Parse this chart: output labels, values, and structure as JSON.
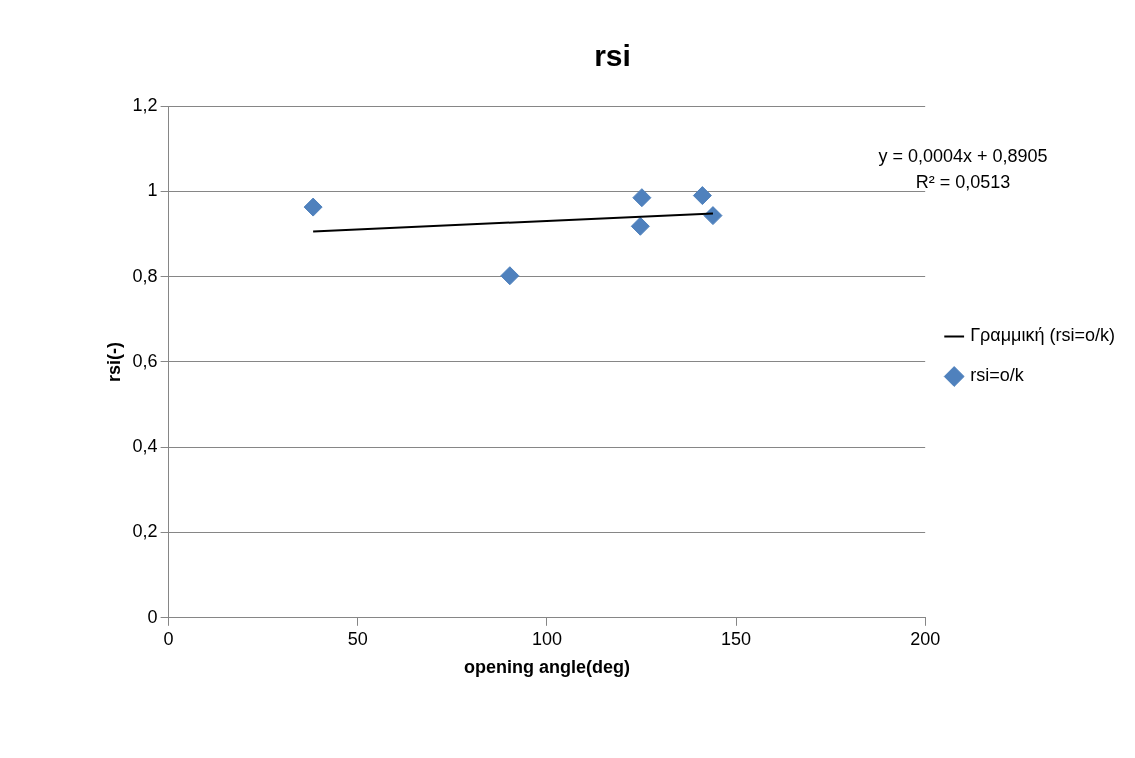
{
  "chart_data": {
    "type": "scatter",
    "title": "rsi",
    "xlabel": "opening angle(deg)",
    "ylabel": "rsi(-)",
    "series": [
      {
        "name": "rsi=o/k",
        "type": "scatter",
        "color": "#4f81bd",
        "x": [
          38.2,
          90.2,
          125.1,
          124.7,
          141.1,
          143.9
        ],
        "values": [
          0.963,
          0.802,
          0.985,
          0.918,
          0.99,
          0.943
        ],
        "marker": "diamond"
      },
      {
        "name": "Γραμμική (rsi=o/k)",
        "type": "line",
        "color": "#000000",
        "x": [
          38.2,
          143.9
        ],
        "values": [
          0.906,
          0.948
        ],
        "marker": "none"
      }
    ],
    "xlim": [
      0,
      200
    ],
    "xticks": [
      0,
      50,
      100,
      150,
      200
    ],
    "ylim": [
      0,
      1.2
    ],
    "yticks": [
      0,
      {
        "value": 0.2,
        "label": "0,2"
      },
      {
        "value": 0.4,
        "label": "0,4"
      },
      {
        "value": 0.6,
        "label": "0,6"
      },
      {
        "value": 0.8,
        "label": "0,8"
      },
      1,
      {
        "value": 1.2,
        "label": "1,2"
      }
    ],
    "grid": "y",
    "legend": "right",
    "line_style": "solid",
    "annotations": [
      "y = 0,0004x + 0,8905",
      "R² = 0,0513"
    ]
  }
}
